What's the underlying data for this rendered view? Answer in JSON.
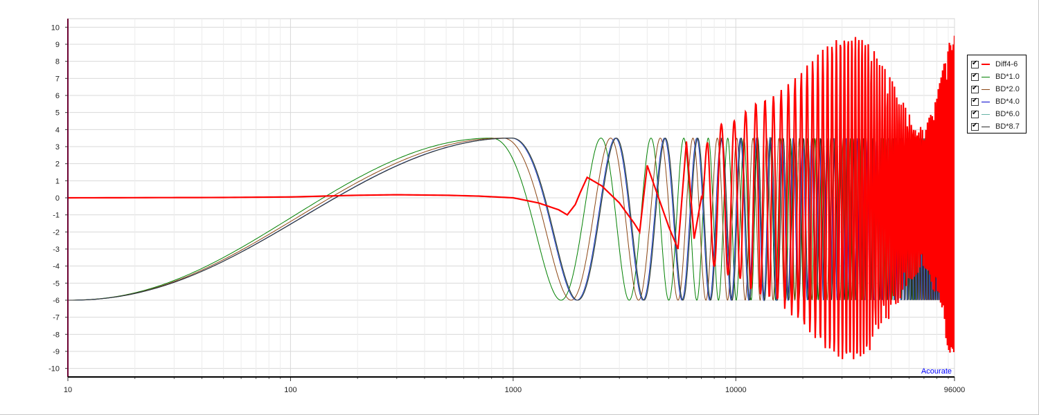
{
  "chart_data": {
    "type": "line",
    "title": "",
    "xlabel": "",
    "ylabel": "",
    "x_scale": "log",
    "xlim": [
      10,
      96000
    ],
    "ylim": [
      -10.5,
      10.5
    ],
    "x_ticks": [
      10,
      100,
      1000,
      10000,
      96000
    ],
    "x_tick_labels": [
      "10",
      "100",
      "1000",
      "10000",
      "96000"
    ],
    "y_ticks": [
      10,
      9,
      8,
      7,
      6,
      5,
      4,
      3,
      2,
      1,
      0,
      -1,
      -2,
      -3,
      -4,
      -5,
      -6,
      -7,
      -8,
      -9,
      -10
    ],
    "y_tick_labels": [
      "10",
      "9",
      "8",
      "7",
      "6",
      "5",
      "4",
      "3",
      "2",
      "1",
      "0",
      "-1",
      "-2",
      "-3",
      "-4",
      "-5",
      "-6",
      "-7",
      "-8",
      "-9",
      "-10"
    ],
    "grid": true,
    "legend_position": "right",
    "annotation": "Acourate",
    "series": [
      {
        "name": "Diff4-6",
        "color": "#ff0000",
        "points": [
          [
            10,
            0.0
          ],
          [
            50,
            0.02
          ],
          [
            100,
            0.05
          ],
          [
            200,
            0.15
          ],
          [
            300,
            0.18
          ],
          [
            500,
            0.15
          ],
          [
            700,
            0.1
          ],
          [
            1000,
            0.0
          ],
          [
            1300,
            -0.3
          ],
          [
            1600,
            -0.7
          ],
          [
            1750,
            -1.0
          ],
          [
            1900,
            -0.4
          ],
          [
            2000,
            0.3
          ],
          [
            2150,
            1.2
          ],
          [
            2500,
            0.7
          ],
          [
            3000,
            -0.3
          ],
          [
            3500,
            -1.5
          ],
          [
            3700,
            -2.0
          ],
          [
            4000,
            1.9
          ],
          [
            4500,
            0.0
          ],
          [
            5000,
            -1.7
          ],
          [
            5500,
            -3.0
          ],
          [
            6000,
            3.3
          ],
          [
            6500,
            -2.4
          ],
          [
            7000,
            0.0
          ],
          [
            7500,
            -3.8
          ],
          [
            8000,
            4.0
          ],
          [
            9000,
            -4.5
          ],
          [
            10000,
            4.5
          ],
          [
            12000,
            -5.5
          ],
          [
            15000,
            6.0
          ],
          [
            20000,
            -7.5
          ],
          [
            25000,
            8.8
          ],
          [
            30000,
            -9.5
          ],
          [
            35000,
            9.5
          ],
          [
            40000,
            -9.0
          ],
          [
            50000,
            7.0
          ],
          [
            60000,
            -5.0
          ],
          [
            70000,
            -4.0
          ],
          [
            80000,
            6.0
          ],
          [
            90000,
            -9.0
          ],
          [
            96000,
            9.5
          ]
        ]
      },
      {
        "name": "BD*1.0",
        "color": "#008000",
        "min": -6.0,
        "max": 3.5,
        "points": [
          [
            10,
            -6.0
          ],
          [
            100,
            -5.1
          ],
          [
            300,
            0.1
          ],
          [
            800,
            3.5
          ],
          [
            1640,
            -6.0
          ],
          [
            2480,
            3.5
          ],
          [
            3240,
            -6.0
          ],
          [
            96000,
            -6.0
          ]
        ]
      },
      {
        "name": "BD*2.0",
        "color": "#8b4513",
        "min": -6.0,
        "max": 3.5,
        "points": [
          [
            10,
            -6.0
          ],
          [
            100,
            -5.3
          ],
          [
            350,
            0.1
          ],
          [
            900,
            3.5
          ],
          [
            1820,
            -6.0
          ],
          [
            2700,
            3.5
          ],
          [
            3550,
            -6.0
          ],
          [
            96000,
            -6.0
          ]
        ]
      },
      {
        "name": "BD*4.0",
        "color": "#0000cd",
        "min": -6.0,
        "max": 3.5,
        "points": [
          [
            10,
            -6.0
          ],
          [
            100,
            -5.4
          ],
          [
            380,
            0.1
          ],
          [
            980,
            3.5
          ],
          [
            1930,
            -6.0
          ],
          [
            2840,
            3.5
          ],
          [
            3720,
            -6.0
          ],
          [
            96000,
            -6.0
          ]
        ]
      },
      {
        "name": "BD*6.0",
        "color": "#66b3a6",
        "min": -6.0,
        "max": 3.5,
        "points": [
          [
            10,
            -6.0
          ],
          [
            100,
            -5.4
          ],
          [
            385,
            0.1
          ],
          [
            985,
            3.5
          ],
          [
            1940,
            -6.0
          ],
          [
            2860,
            3.5
          ],
          [
            3740,
            -6.0
          ],
          [
            96000,
            -6.0
          ]
        ]
      },
      {
        "name": "BD*8.7",
        "color": "#2a2a2a",
        "min": -6.0,
        "max": 3.5,
        "points": [
          [
            10,
            -6.0
          ],
          [
            100,
            -5.4
          ],
          [
            390,
            0.1
          ],
          [
            990,
            3.5
          ],
          [
            1950,
            -6.0
          ],
          [
            2880,
            3.5
          ],
          [
            3760,
            -6.0
          ],
          [
            96000,
            -6.0
          ]
        ]
      }
    ]
  }
}
